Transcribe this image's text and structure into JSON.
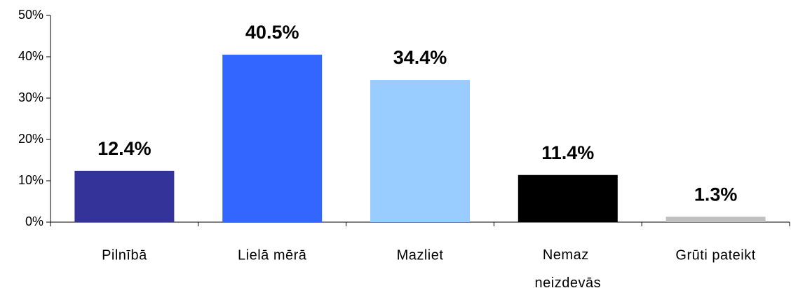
{
  "chart_data": {
    "type": "bar",
    "categories": [
      "Pilnībā",
      "Lielā mērā",
      "Mazliet",
      "Nemaz neizdevās",
      "Grūti pateikt"
    ],
    "values": [
      12.4,
      40.5,
      34.4,
      11.4,
      1.3
    ],
    "value_labels": [
      "12.4%",
      "40.5%",
      "34.4%",
      "11.4%",
      "1.3%"
    ],
    "colors": [
      "#333399",
      "#3366ff",
      "#99ccff",
      "#000000",
      "#c0c0c0"
    ],
    "ylim": [
      0,
      50
    ],
    "yticks": [
      {
        "value": 0,
        "label": "0%"
      },
      {
        "value": 10,
        "label": "10%"
      },
      {
        "value": 20,
        "label": "20%"
      },
      {
        "value": 30,
        "label": "30%"
      },
      {
        "value": 40,
        "label": "40%"
      },
      {
        "value": 50,
        "label": "50%"
      }
    ],
    "grid": false
  }
}
